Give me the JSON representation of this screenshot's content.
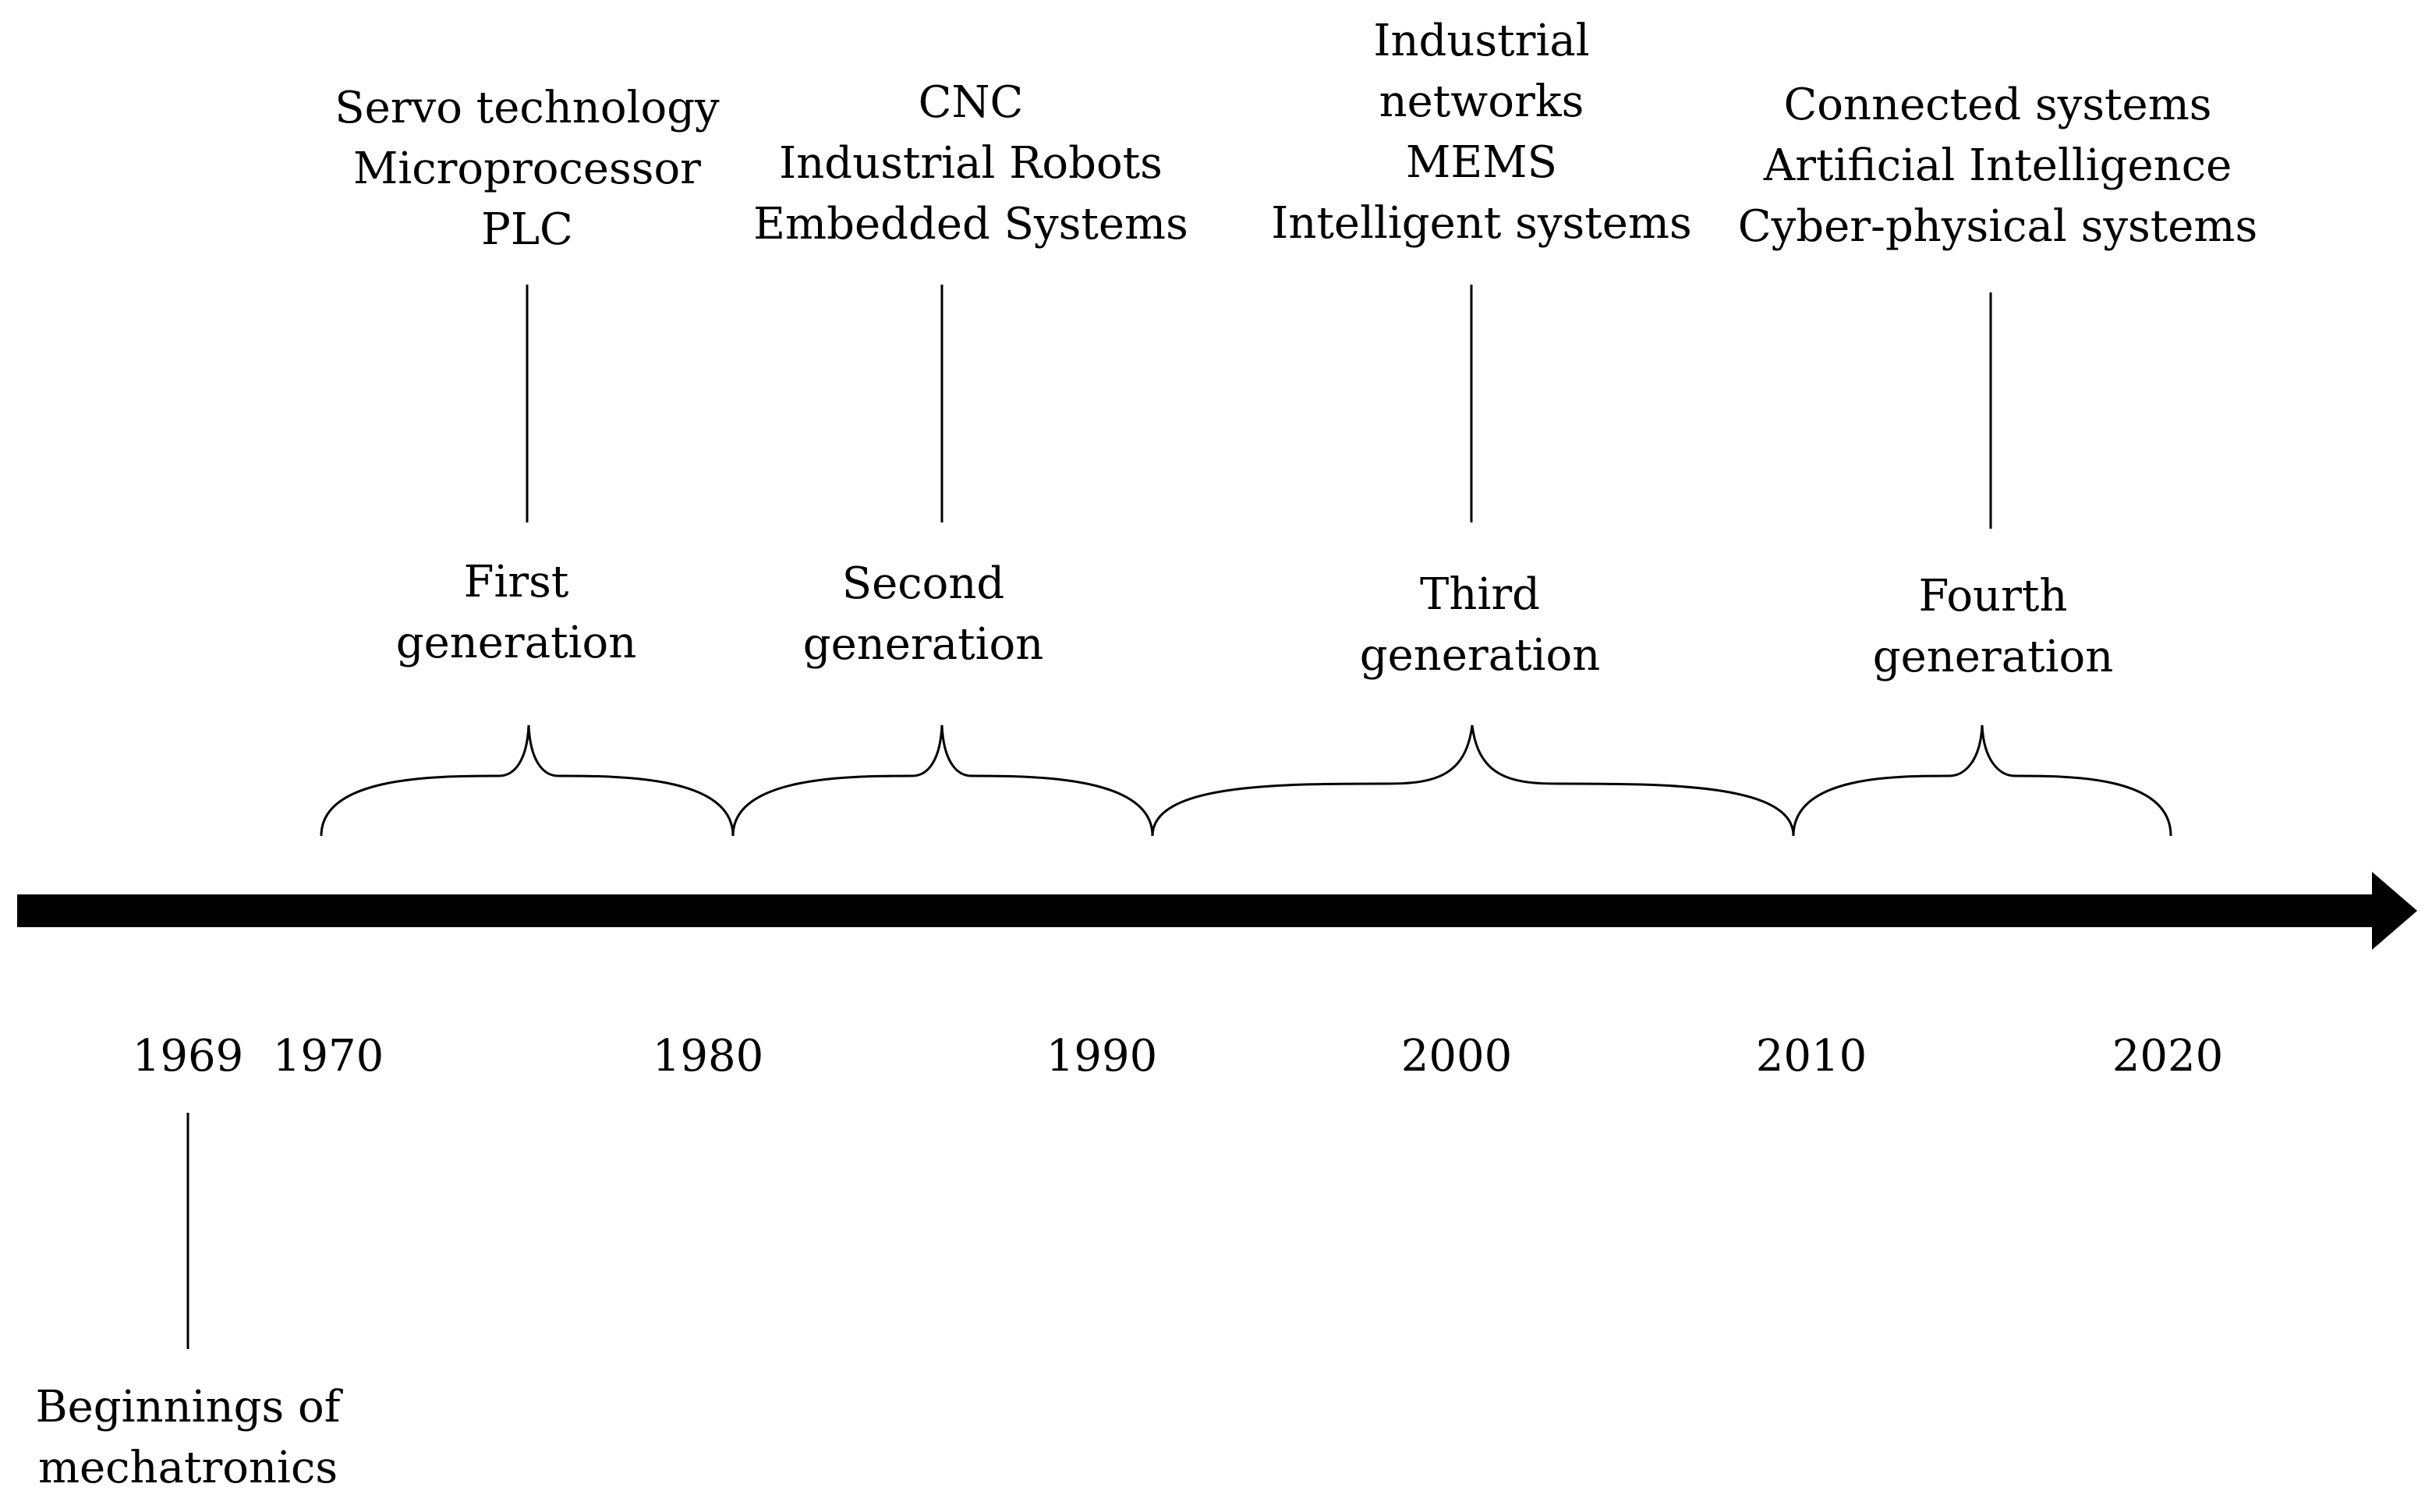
{
  "generations": [
    {
      "label_line1": "First",
      "label_line2": "generation",
      "technologies": [
        "Servo technology",
        "Microprocessor",
        "PLC"
      ]
    },
    {
      "label_line1": "Second",
      "label_line2": "generation",
      "technologies": [
        "CNC",
        "Industrial Robots",
        "Embedded Systems"
      ]
    },
    {
      "label_line1": "Third",
      "label_line2": "generation",
      "technologies": [
        "Industrial",
        "networks",
        "MEMS",
        "Intelligent systems"
      ]
    },
    {
      "label_line1": "Fourth",
      "label_line2": "generation",
      "technologies": [
        "Connected systems",
        "Artificial Intelligence",
        "Cyber-physical systems"
      ]
    }
  ],
  "years": [
    "1969",
    "1970",
    "1980",
    "1990",
    "2000",
    "2010",
    "2020"
  ],
  "origin": {
    "line1": "Beginnings of",
    "line2": "mechatronics"
  }
}
